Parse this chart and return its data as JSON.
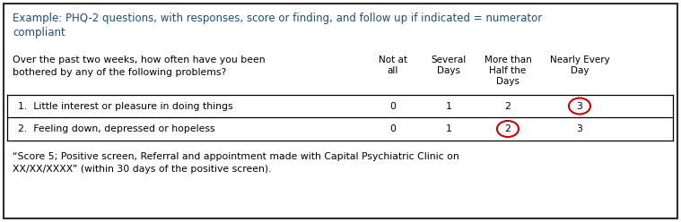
{
  "title_line1": "Example: PHQ-2 questions, with responses, score or finding, and follow up if indicated = numerator",
  "title_line2": "compliant",
  "header_question": "Over the past two weeks, how often have you been\nbothered by any of the following problems?",
  "col_headers_line1": [
    "Not at",
    "Several",
    "More than",
    "Nearly Every"
  ],
  "col_headers_line2": [
    "all",
    "Days",
    "Half the",
    "Day"
  ],
  "col_headers_line3": [
    "",
    "",
    "Days",
    ""
  ],
  "rows": [
    {
      "label": "1.  Little interest or pleasure in doing things",
      "values": [
        "0",
        "1",
        "2",
        "3"
      ],
      "circle_col": 3
    },
    {
      "label": "2.  Feeling down, depressed or hopeless",
      "values": [
        "0",
        "1",
        "2",
        "3"
      ],
      "circle_col": 2
    }
  ],
  "footer_line1": "“Score 5; Positive screen, Referral and appointment made with Capital Psychiatric Clinic on",
  "footer_line2": "XX/XX/XXXX” (within 30 days of the positive screen).",
  "bg_color": "#ffffff",
  "outer_border_color": "#2e2e2e",
  "title_color": "#1f4e79",
  "table_text_color": "#000000",
  "circle_color": "#cc0000",
  "fig_width": 7.59,
  "fig_height": 2.48,
  "dpi": 100
}
